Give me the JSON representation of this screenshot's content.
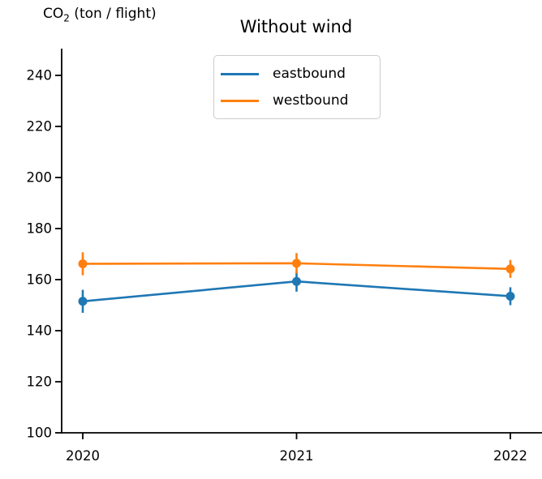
{
  "figure": {
    "title": "Without wind",
    "ylabel_parts": {
      "prefix": "CO",
      "sub": "2",
      "suffix": " (ton / flight)"
    }
  },
  "chart_data": {
    "type": "line",
    "title": "Without wind",
    "ylabel": "CO2 (ton / flight)",
    "xlabel": "",
    "x": [
      2020,
      2021,
      2022
    ],
    "xtick_labels": [
      "2020",
      "2021",
      "2022"
    ],
    "yticks": [
      100,
      120,
      140,
      160,
      180,
      200,
      220,
      240
    ],
    "ylim": [
      100,
      250
    ],
    "grid": false,
    "marker": "circle",
    "error_bars": true,
    "legend_position": "upper center",
    "series": [
      {
        "name": "eastbound",
        "color": "#1f77b4",
        "values": [
          151.5,
          159.3,
          153.5
        ],
        "yerr": [
          4.5,
          4.0,
          3.5
        ]
      },
      {
        "name": "westbound",
        "color": "#ff7f0e",
        "values": [
          166.2,
          166.4,
          164.2
        ],
        "yerr": [
          4.5,
          4.0,
          3.5
        ]
      }
    ]
  },
  "colors": {
    "axis": "#000000",
    "text": "#000000",
    "legend_border": "#cccccc",
    "background": "#ffffff"
  }
}
